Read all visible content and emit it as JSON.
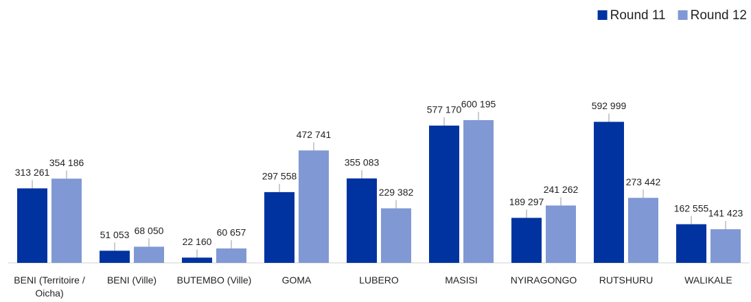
{
  "chart_data": {
    "type": "bar",
    "categories": [
      "BENI (Territoire / Oicha)",
      "BENI (Ville)",
      "BUTEMBO (Ville)",
      "GOMA",
      "LUBERO",
      "MASISI",
      "NYIRAGONGO",
      "RUTSHURU",
      "WALIKALE"
    ],
    "series": [
      {
        "name": "Round 11",
        "color": "#0033a0",
        "values": [
          313261,
          51053,
          22160,
          297558,
          355083,
          577170,
          189297,
          592999,
          162555
        ],
        "value_labels": [
          "313 261",
          "51 053",
          "22 160",
          "297 558",
          "355 083",
          "577 170",
          "189 297",
          "592 999",
          "162 555"
        ]
      },
      {
        "name": "Round 12",
        "color": "#8099d4",
        "values": [
          354186,
          68050,
          60657,
          472741,
          229382,
          600195,
          241262,
          273442,
          141423
        ],
        "value_labels": [
          "354 186",
          "68 050",
          "60 657",
          "472 741",
          "229 382",
          "600 195",
          "241 262",
          "273 442",
          "141 423"
        ]
      }
    ],
    "legend": "top-right"
  }
}
